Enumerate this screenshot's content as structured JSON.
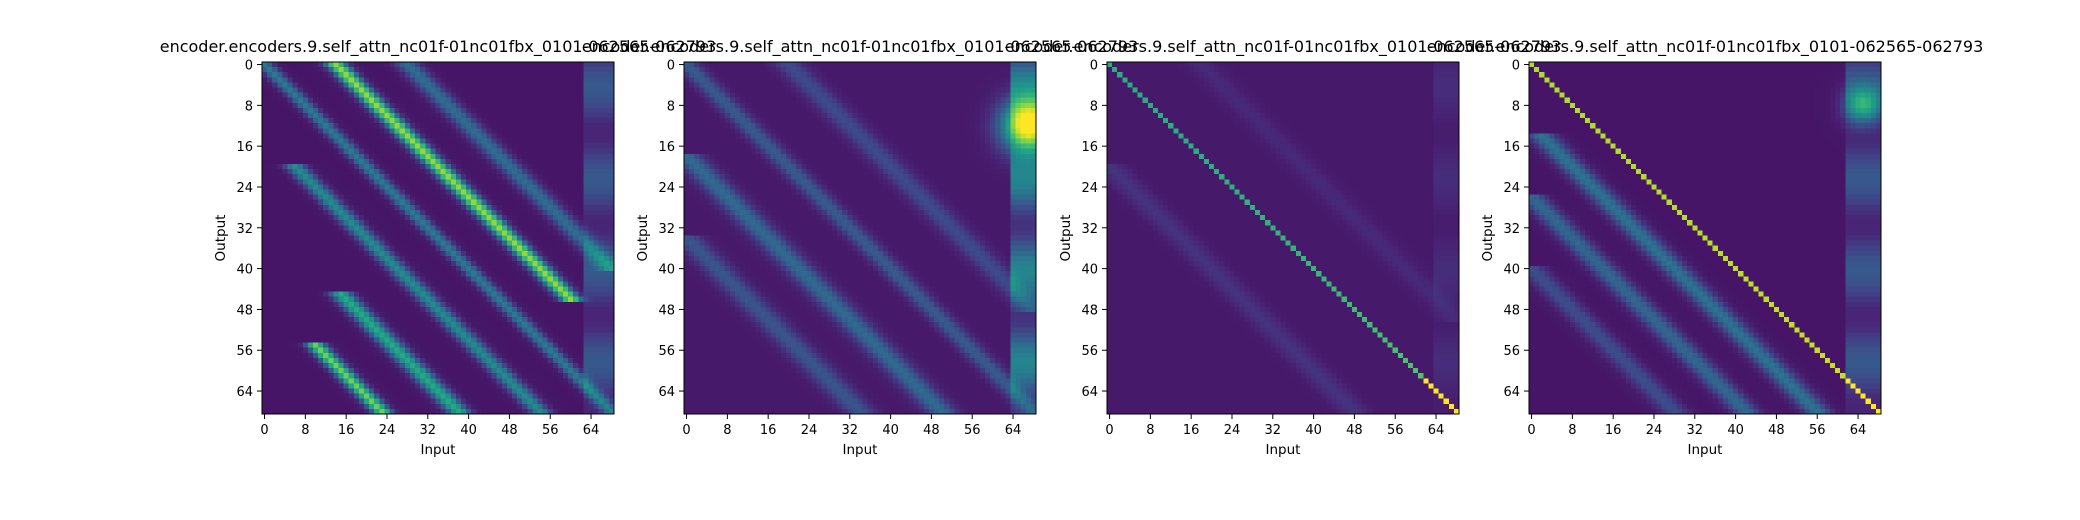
{
  "chart_data": [
    {
      "type": "heatmap",
      "title": "encoder.encoders.9.self_attn_nc01f-01nc01fbx_0101-062565-062793",
      "xlabel": "Input",
      "ylabel": "Output",
      "x_range": [
        0,
        69
      ],
      "y_range": [
        0,
        69
      ],
      "x_ticks": [
        0,
        8,
        16,
        24,
        32,
        40,
        48,
        56,
        64
      ],
      "y_ticks": [
        0,
        8,
        16,
        24,
        32,
        40,
        48,
        56,
        64
      ],
      "colormap": "viridis",
      "value_range": [
        0,
        1
      ],
      "matrix_size": 69,
      "pattern": {
        "base": 0.06,
        "diagonal": 0.0,
        "diagonal_shift_bands": [
          {
            "offset": 14,
            "amplitude": 0.78,
            "width": 1.4,
            "row_start": 0,
            "row_end": 46
          },
          {
            "offset": 0,
            "amplitude": 0.35,
            "width": 1.2,
            "row_start": 0,
            "row_end": 68
          },
          {
            "offset": -14,
            "amplitude": 0.42,
            "width": 1.4,
            "row_start": 20,
            "row_end": 68
          },
          {
            "offset": -30,
            "amplitude": 0.55,
            "width": 1.5,
            "row_start": 45,
            "row_end": 68
          },
          {
            "offset": -45,
            "amplitude": 0.72,
            "width": 1.3,
            "row_start": 55,
            "row_end": 68
          },
          {
            "offset": 28,
            "amplitude": 0.3,
            "width": 1.6,
            "row_start": 0,
            "row_end": 40
          }
        ],
        "right_column": {
          "start": 63,
          "amplitude": 0.22
        },
        "hot_spots": []
      }
    },
    {
      "type": "heatmap",
      "title": "encoder.encoders.9.self_attn_nc01f-01nc01fbx_0101-062565-062793",
      "xlabel": "Input",
      "ylabel": "Output",
      "x_range": [
        0,
        69
      ],
      "y_range": [
        0,
        69
      ],
      "x_ticks": [
        0,
        8,
        16,
        24,
        32,
        40,
        48,
        56,
        64
      ],
      "y_ticks": [
        0,
        8,
        16,
        24,
        32,
        40,
        48,
        56,
        64
      ],
      "colormap": "viridis",
      "value_range": [
        0,
        1
      ],
      "matrix_size": 69,
      "pattern": {
        "base": 0.07,
        "diagonal": 0.0,
        "diagonal_shift_bands": [
          {
            "offset": 0,
            "amplitude": 0.22,
            "width": 1.6,
            "row_start": 0,
            "row_end": 68
          },
          {
            "offset": -18,
            "amplitude": 0.28,
            "width": 2.0,
            "row_start": 18,
            "row_end": 68
          },
          {
            "offset": -34,
            "amplitude": 0.2,
            "width": 2.0,
            "row_start": 34,
            "row_end": 68
          },
          {
            "offset": 20,
            "amplitude": 0.16,
            "width": 2.0,
            "row_start": 0,
            "row_end": 48
          }
        ],
        "right_column": {
          "start": 64,
          "amplitude": 0.38
        },
        "hot_spots": [
          {
            "row": 12,
            "col": 67,
            "value": 0.95,
            "spread": 3.5
          }
        ]
      }
    },
    {
      "type": "heatmap",
      "title": "encoder.encoders.9.self_attn_nc01f-01nc01fbx_0101-062565-062793",
      "xlabel": "Input",
      "ylabel": "Output",
      "x_range": [
        0,
        69
      ],
      "y_range": [
        0,
        69
      ],
      "x_ticks": [
        0,
        8,
        16,
        24,
        32,
        40,
        48,
        56,
        64
      ],
      "y_ticks": [
        0,
        8,
        16,
        24,
        32,
        40,
        48,
        56,
        64
      ],
      "colormap": "viridis",
      "value_range": [
        0,
        1
      ],
      "matrix_size": 69,
      "pattern": {
        "base": 0.07,
        "diagonal": 0.55,
        "diagonal_end_boost": 0.42,
        "diagonal_shift_bands": [
          {
            "offset": -20,
            "amplitude": 0.08,
            "width": 2.0,
            "row_start": 20,
            "row_end": 68
          },
          {
            "offset": 18,
            "amplitude": 0.05,
            "width": 2.0,
            "row_start": 0,
            "row_end": 50
          }
        ],
        "right_column": {
          "start": 64,
          "amplitude": 0.06
        },
        "hot_spots": []
      }
    },
    {
      "type": "heatmap",
      "title": "encoder.encoders.9.self_attn_nc01f-01nc01fbx_0101-062565-062793",
      "xlabel": "Input",
      "ylabel": "Output",
      "x_range": [
        0,
        69
      ],
      "y_range": [
        0,
        69
      ],
      "x_ticks": [
        0,
        8,
        16,
        24,
        32,
        40,
        48,
        56,
        64
      ],
      "y_ticks": [
        0,
        8,
        16,
        24,
        32,
        40,
        48,
        56,
        64
      ],
      "colormap": "viridis",
      "value_range": [
        0,
        1
      ],
      "matrix_size": 69,
      "pattern": {
        "base": 0.06,
        "diagonal": 0.82,
        "diagonal_end_boost": 0.15,
        "diagonal_shift_bands": [
          {
            "offset": -12,
            "amplitude": 0.32,
            "width": 1.8,
            "row_start": 14,
            "row_end": 68
          },
          {
            "offset": -26,
            "amplitude": 0.28,
            "width": 1.8,
            "row_start": 26,
            "row_end": 68
          },
          {
            "offset": -40,
            "amplitude": 0.18,
            "width": 1.8,
            "row_start": 40,
            "row_end": 68
          }
        ],
        "right_column": {
          "start": 62,
          "amplitude": 0.22
        },
        "hot_spots": [
          {
            "row": 8,
            "col": 65,
            "value": 0.45,
            "spread": 2.5
          }
        ]
      }
    }
  ]
}
